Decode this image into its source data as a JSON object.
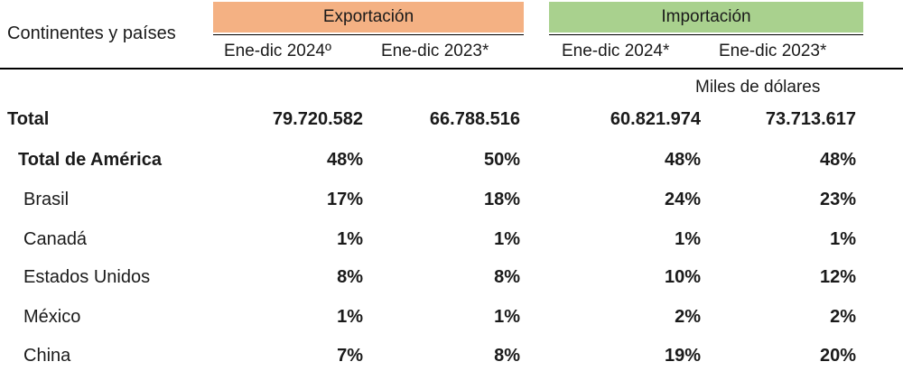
{
  "header": {
    "row_header": "Continentes y países",
    "export_group": "Exportación",
    "import_group": "Importación",
    "export_cols": [
      "Ene-dic 2024º",
      "Ene-dic 2023*"
    ],
    "import_cols": [
      "Ene-dic 2024*",
      "Ene-dic 2023*"
    ],
    "units": "Miles de dólares"
  },
  "colors": {
    "export_header": "#f4b183",
    "import_header": "#a9d18e"
  },
  "rows": [
    {
      "label": "Total",
      "values": [
        "79.720.582",
        "66.788.516",
        "60.821.974",
        "73.713.617"
      ]
    },
    {
      "label": "Total de América",
      "values": [
        "48%",
        "50%",
        "48%",
        "48%"
      ]
    },
    {
      "label": "Brasil",
      "values": [
        "17%",
        "18%",
        "24%",
        "23%"
      ]
    },
    {
      "label": "Canadá",
      "values": [
        "1%",
        "1%",
        "1%",
        "1%"
      ]
    },
    {
      "label": "Estados Unidos",
      "values": [
        "8%",
        "8%",
        "10%",
        "12%"
      ]
    },
    {
      "label": "México",
      "values": [
        "1%",
        "1%",
        "2%",
        "2%"
      ]
    },
    {
      "label": "China",
      "values": [
        "7%",
        "8%",
        "19%",
        "20%"
      ]
    }
  ]
}
